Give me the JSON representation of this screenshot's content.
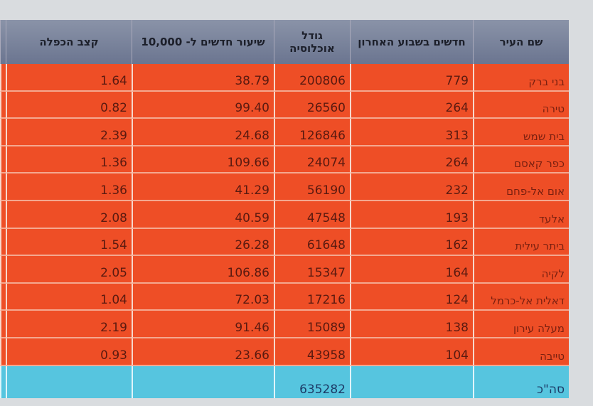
{
  "table": {
    "headers": [
      "שם העיר",
      "חדשים בשבוע האחרון",
      "גודל אוכלוסיה",
      "שיעור חדשים ל- 10,000",
      "קצב הכפלה"
    ],
    "rows": [
      [
        "בני ברק",
        "779",
        "200806",
        "38.79",
        "1.64"
      ],
      [
        "טירה",
        "264",
        "26560",
        "99.40",
        "0.82"
      ],
      [
        "בית שמש",
        "313",
        "126846",
        "24.68",
        "2.39"
      ],
      [
        "כפר קאסם",
        "264",
        "24074",
        "109.66",
        "1.36"
      ],
      [
        "אום אל-פחם",
        "232",
        "56190",
        "41.29",
        "1.36"
      ],
      [
        "אלעד",
        "193",
        "47548",
        "40.59",
        "2.08"
      ],
      [
        "ביתר עילית",
        "162",
        "61648",
        "26.28",
        "1.54"
      ],
      [
        "לקיה",
        "164",
        "15347",
        "106.86",
        "2.05"
      ],
      [
        "דאלית אל-כרמל",
        "124",
        "17216",
        "72.03",
        "1.04"
      ],
      [
        "מעלה עירון",
        "138",
        "15089",
        "91.46",
        "2.19"
      ],
      [
        "טייבה",
        "104",
        "43958",
        "23.66",
        "0.93"
      ]
    ],
    "total": {
      "label": "סה\"כ",
      "population": "635282"
    }
  }
}
